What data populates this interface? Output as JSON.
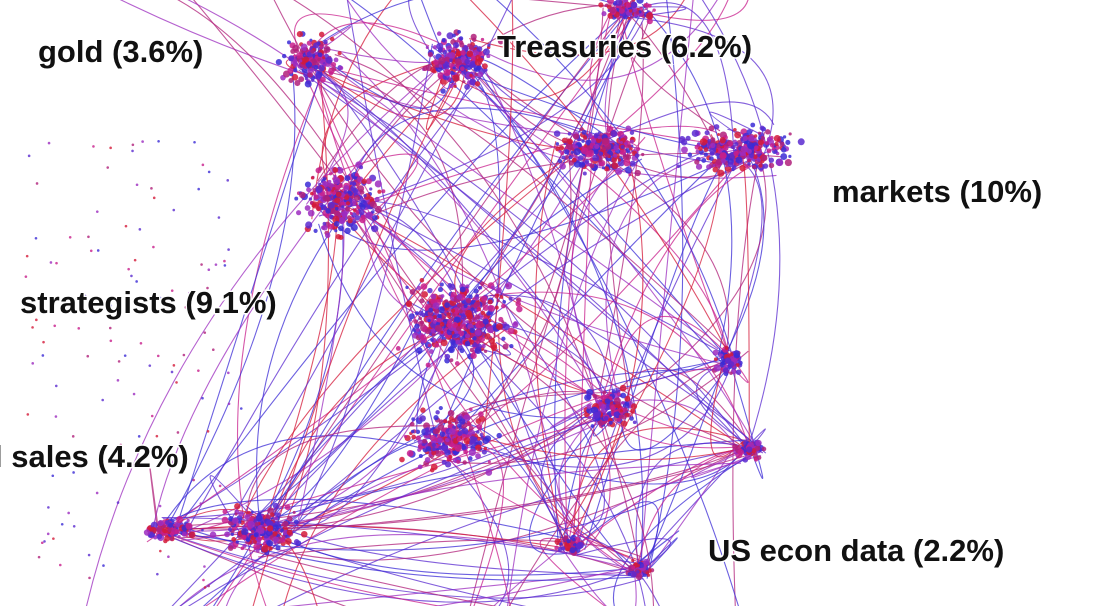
{
  "nodes": [
    {
      "label": "gold (3.6%)"
    },
    {
      "label": "Treasuries (6.2%)"
    },
    {
      "label": "markets (10%)"
    },
    {
      "label": "strategists (9.1%)"
    },
    {
      "label": "l sales (4.2%)"
    },
    {
      "label": "US econ data (2.2%)"
    }
  ]
}
